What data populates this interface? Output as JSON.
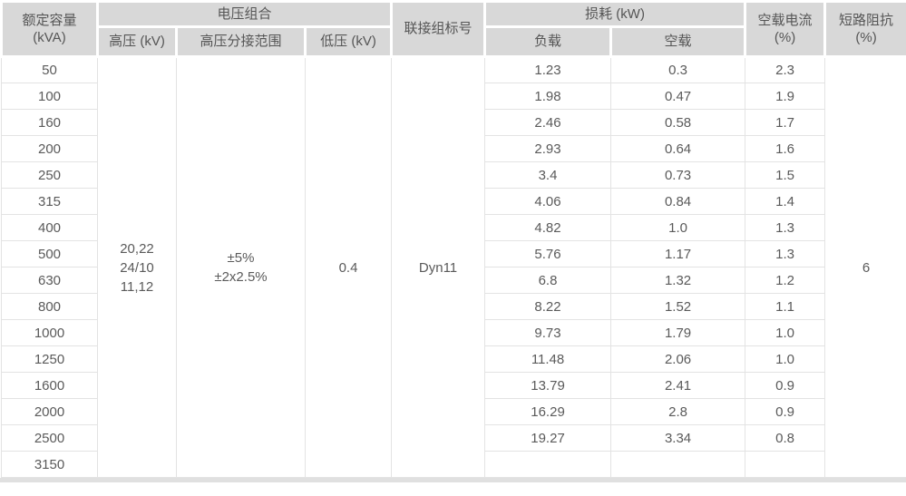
{
  "table": {
    "title_semantic": "transformer-specification-table",
    "header": {
      "rated_capacity": "额定容量\n(kVA)",
      "voltage_combination": "电压组合",
      "high_voltage": "高压 (kV)",
      "tap_range": "高压分接范围",
      "low_voltage": "低压 (kV)",
      "connection_group": "联接组标号",
      "loss": "损耗 (kW)",
      "load_loss": "负载",
      "no_load_loss": "空载",
      "no_load_current": "空载电流\n(%)",
      "short_circuit_impedance": "短路阻抗\n(%)"
    },
    "merged": {
      "high_voltage": "20,22\n24/10\n11,12",
      "tap_range": "±5%\n±2x2.5%",
      "low_voltage": "0.4",
      "connection_group": "Dyn11",
      "short_circuit_impedance": "6"
    },
    "rows": [
      {
        "capacity": "50",
        "load_loss": "1.23",
        "no_load_loss": "0.3",
        "no_load_current": "2.3"
      },
      {
        "capacity": "100",
        "load_loss": "1.98",
        "no_load_loss": "0.47",
        "no_load_current": "1.9"
      },
      {
        "capacity": "160",
        "load_loss": "2.46",
        "no_load_loss": "0.58",
        "no_load_current": "1.7"
      },
      {
        "capacity": "200",
        "load_loss": "2.93",
        "no_load_loss": "0.64",
        "no_load_current": "1.6"
      },
      {
        "capacity": "250",
        "load_loss": "3.4",
        "no_load_loss": "0.73",
        "no_load_current": "1.5"
      },
      {
        "capacity": "315",
        "load_loss": "4.06",
        "no_load_loss": "0.84",
        "no_load_current": "1.4"
      },
      {
        "capacity": "400",
        "load_loss": "4.82",
        "no_load_loss": "1.0",
        "no_load_current": "1.3"
      },
      {
        "capacity": "500",
        "load_loss": "5.76",
        "no_load_loss": "1.17",
        "no_load_current": "1.3"
      },
      {
        "capacity": "630",
        "load_loss": "6.8",
        "no_load_loss": "1.32",
        "no_load_current": "1.2"
      },
      {
        "capacity": "800",
        "load_loss": "8.22",
        "no_load_loss": "1.52",
        "no_load_current": "1.1"
      },
      {
        "capacity": "1000",
        "load_loss": "9.73",
        "no_load_loss": "1.79",
        "no_load_current": "1.0"
      },
      {
        "capacity": "1250",
        "load_loss": "11.48",
        "no_load_loss": "2.06",
        "no_load_current": "1.0"
      },
      {
        "capacity": "1600",
        "load_loss": "13.79",
        "no_load_loss": "2.41",
        "no_load_current": "0.9"
      },
      {
        "capacity": "2000",
        "load_loss": "16.29",
        "no_load_loss": "2.8",
        "no_load_current": "0.9"
      },
      {
        "capacity": "2500",
        "load_loss": "19.27",
        "no_load_loss": "3.34",
        "no_load_current": "0.8"
      },
      {
        "capacity": "3150",
        "load_loss": "",
        "no_load_loss": "",
        "no_load_current": ""
      }
    ],
    "colors": {
      "header_bg": "#d8d8d8",
      "header_text": "#555555",
      "body_text": "#5a5a5a",
      "body_border": "#e3e3e3",
      "bottom_strip": "#e0e0e0"
    }
  }
}
